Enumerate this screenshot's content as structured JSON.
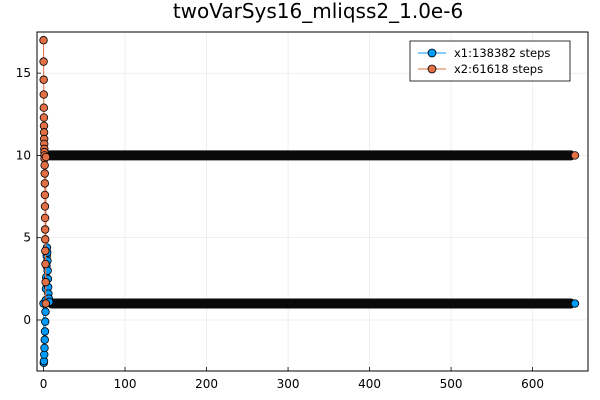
{
  "chart_data": {
    "type": "scatter",
    "title": "twoVarSys16_mliqss2_1.0e-6",
    "xlabel": "",
    "ylabel": "",
    "xlim": [
      -8,
      668
    ],
    "ylim": [
      -3.1,
      17.5
    ],
    "xticks": [
      0,
      100,
      200,
      300,
      400,
      500,
      600
    ],
    "yticks": [
      0,
      5,
      10,
      15
    ],
    "grid": true,
    "legend_position": "top-right",
    "series": [
      {
        "name": "x1:138382 steps",
        "color": "#009af9",
        "transient": {
          "x": [
            0,
            0.3,
            0.6,
            0.9,
            1.2,
            1.5,
            1.8,
            2.1,
            2.4,
            2.7,
            3.0,
            3.3,
            3.6,
            3.9,
            4.2,
            4.5,
            4.8,
            5.1,
            5.4,
            5.7,
            6.0,
            6.5,
            7.0
          ],
          "y": [
            1.0,
            -2.6,
            -2.5,
            -2.1,
            -1.7,
            -1.2,
            -0.7,
            -0.1,
            0.5,
            1.2,
            1.9,
            2.6,
            3.3,
            3.9,
            4.4,
            4.1,
            3.6,
            3.0,
            2.5,
            2.0,
            1.6,
            1.3,
            1.1
          ]
        },
        "steady_value": 1.0,
        "steady_range": [
          5,
          652
        ],
        "endpoint": [
          652,
          1.0
        ]
      },
      {
        "name": "x2:61618 steps",
        "color": "#e26f46",
        "transient": {
          "x": [
            0,
            0.1,
            0.2,
            0.3,
            0.4,
            0.5,
            0.6,
            0.7,
            0.8,
            0.9,
            1.0,
            1.1,
            1.2,
            1.3,
            1.4,
            1.5,
            1.6,
            1.7,
            1.8,
            1.9,
            2.0,
            2.1,
            2.2,
            2.4,
            2.6,
            2.8,
            3.0
          ],
          "y": [
            17.0,
            15.7,
            14.6,
            13.7,
            12.9,
            12.3,
            11.8,
            11.4,
            11.0,
            10.7,
            10.4,
            10.2,
            10.0,
            9.8,
            9.4,
            8.9,
            8.3,
            7.6,
            6.9,
            6.2,
            5.5,
            4.9,
            4.2,
            3.4,
            2.3,
            1.0,
            9.9
          ]
        },
        "steady_value": 10.0,
        "steady_range": [
          3,
          652
        ],
        "endpoint": [
          652,
          10.0
        ]
      }
    ]
  }
}
